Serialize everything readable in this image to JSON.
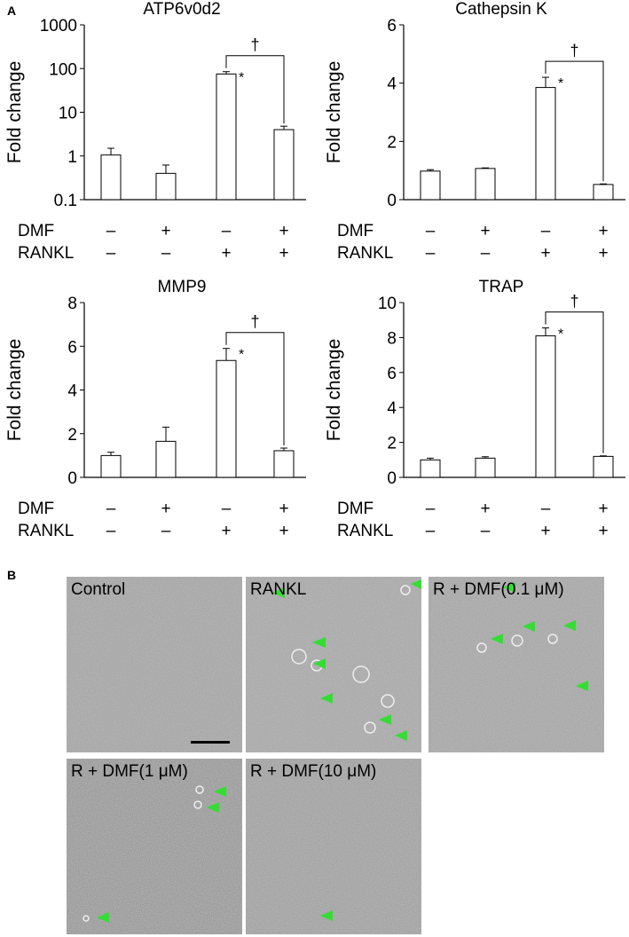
{
  "panel_labels": [
    "A",
    "B"
  ],
  "chart_data": [
    {
      "type": "bar",
      "title": "ATP6v0d2",
      "y_label": "Fold change",
      "log_scale": true,
      "ylim": [
        0.1,
        1000
      ],
      "yticks": [
        0.1,
        1,
        10,
        100,
        1000
      ],
      "values": [
        1.05,
        0.4,
        75,
        4
      ],
      "errors": [
        0.45,
        0.22,
        10,
        0.8
      ],
      "color": "#ffffff",
      "condition_rows": [
        {
          "name": "DMF",
          "signs": [
            "–",
            "+",
            "–",
            "+"
          ]
        },
        {
          "name": "RANKL",
          "signs": [
            "–",
            "–",
            "+",
            "+"
          ]
        }
      ],
      "annotations": [
        "*",
        "†"
      ]
    },
    {
      "type": "bar",
      "title": "Cathepsin K",
      "y_label": "Fold change",
      "log_scale": false,
      "ylim": [
        0,
        6
      ],
      "yticks": [
        0,
        2,
        4,
        6
      ],
      "values": [
        0.98,
        1.07,
        3.85,
        0.52
      ],
      "errors": [
        0.05,
        0.02,
        0.35,
        0.02
      ],
      "color": "#ffffff",
      "condition_rows": [
        {
          "name": "DMF",
          "signs": [
            "–",
            "+",
            "–",
            "+"
          ]
        },
        {
          "name": "RANKL",
          "signs": [
            "–",
            "–",
            "+",
            "+"
          ]
        }
      ],
      "annotations": [
        "*",
        "†"
      ]
    },
    {
      "type": "bar",
      "title": "MMP9",
      "y_label": "Fold change",
      "log_scale": false,
      "ylim": [
        0,
        8
      ],
      "yticks": [
        0,
        2,
        4,
        6,
        8
      ],
      "values": [
        1.0,
        1.65,
        5.35,
        1.22
      ],
      "errors": [
        0.15,
        0.65,
        0.55,
        0.12
      ],
      "color": "#ffffff",
      "condition_rows": [
        {
          "name": "DMF",
          "signs": [
            "–",
            "+",
            "–",
            "+"
          ]
        },
        {
          "name": "RANKL",
          "signs": [
            "–",
            "–",
            "+",
            "+"
          ]
        }
      ],
      "annotations": [
        "*",
        "†"
      ]
    },
    {
      "type": "bar",
      "title": "TRAP",
      "y_label": "Fold change",
      "log_scale": false,
      "ylim": [
        0,
        10
      ],
      "yticks": [
        0,
        2,
        4,
        6,
        8,
        10
      ],
      "values": [
        1.0,
        1.1,
        8.1,
        1.2
      ],
      "errors": [
        0.1,
        0.08,
        0.45,
        0.03
      ],
      "color": "#ffffff",
      "condition_rows": [
        {
          "name": "DMF",
          "signs": [
            "–",
            "+",
            "–",
            "+"
          ]
        },
        {
          "name": "RANKL",
          "signs": [
            "–",
            "–",
            "+",
            "+"
          ]
        }
      ],
      "annotations": [
        "*",
        "†"
      ]
    }
  ],
  "micrographs": [
    "Control",
    "RANKL",
    "R + DMF(0.1 μM)",
    "R + DMF(1 μM)",
    "R + DMF(10 μM)"
  ]
}
